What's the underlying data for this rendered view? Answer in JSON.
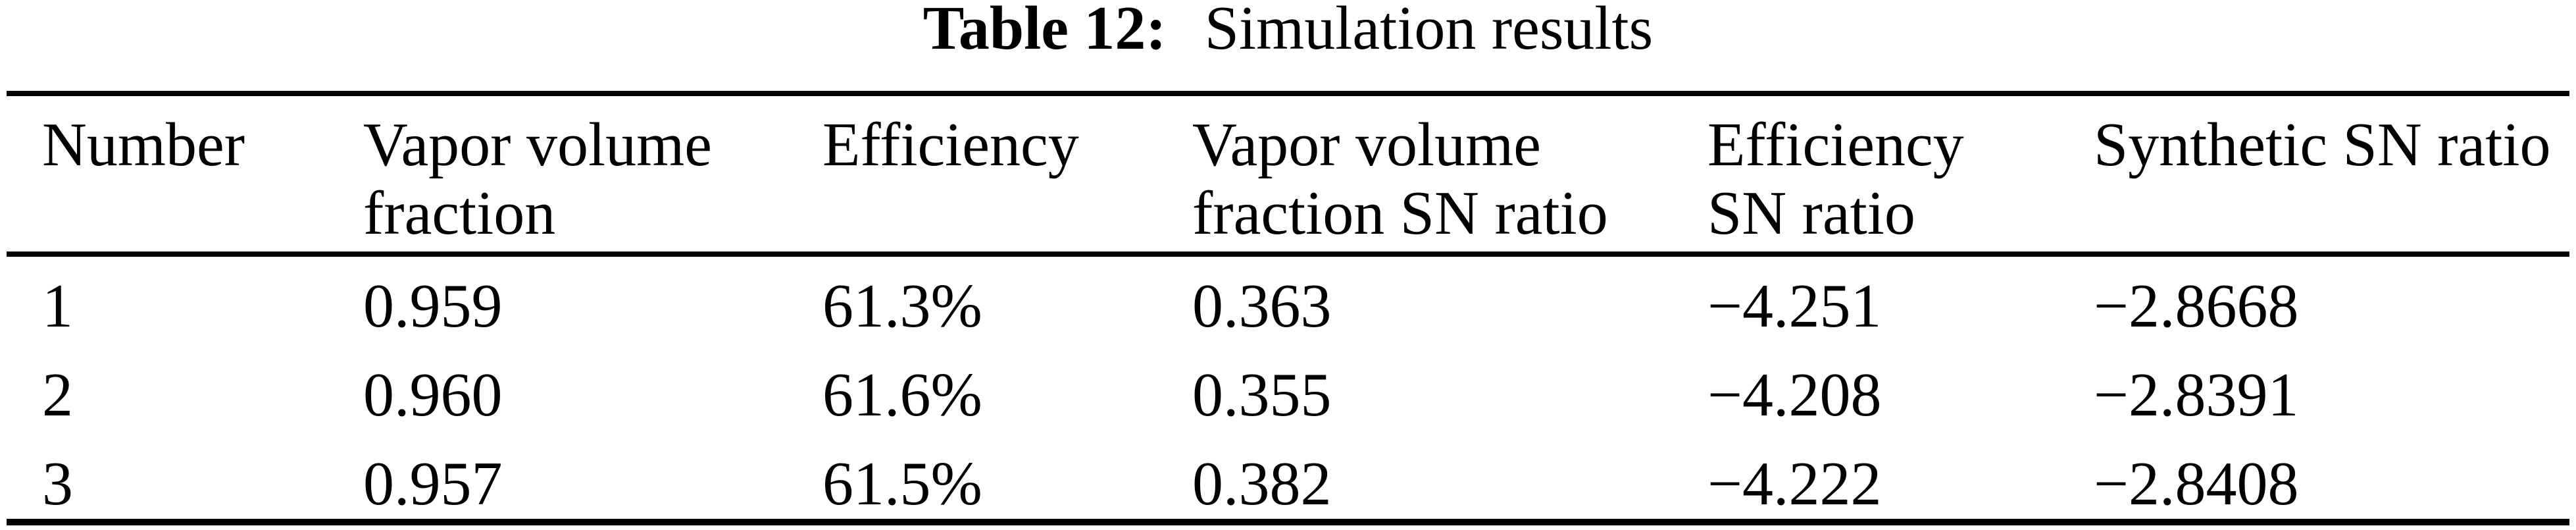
{
  "caption": {
    "label": "Table 12:",
    "text": "Simulation results"
  },
  "table": {
    "columns": [
      {
        "id": "number",
        "header": [
          "Number"
        ]
      },
      {
        "id": "vapor-volume-fraction",
        "header": [
          "Vapor volume",
          "fraction"
        ]
      },
      {
        "id": "efficiency",
        "header": [
          "Efficiency"
        ]
      },
      {
        "id": "vapor-volume-fraction-sn-ratio",
        "header": [
          "Vapor volume",
          "fraction SN ratio"
        ]
      },
      {
        "id": "efficiency-sn-ratio",
        "header": [
          "Efficiency",
          "SN ratio"
        ]
      },
      {
        "id": "synthetic-sn-ratio",
        "header": [
          "Synthetic SN ratio"
        ]
      }
    ],
    "rows": [
      [
        "1",
        "0.959",
        "61.3%",
        "0.363",
        "−4.251",
        "−2.8668"
      ],
      [
        "2",
        "0.960",
        "61.6%",
        "0.355",
        "−4.208",
        "−2.8391"
      ],
      [
        "3",
        "0.957",
        "61.5%",
        "0.382",
        "−4.222",
        "−2.8408"
      ]
    ]
  },
  "colors": {
    "text": "#000000",
    "background": "#ffffff",
    "rule": "#000000"
  }
}
